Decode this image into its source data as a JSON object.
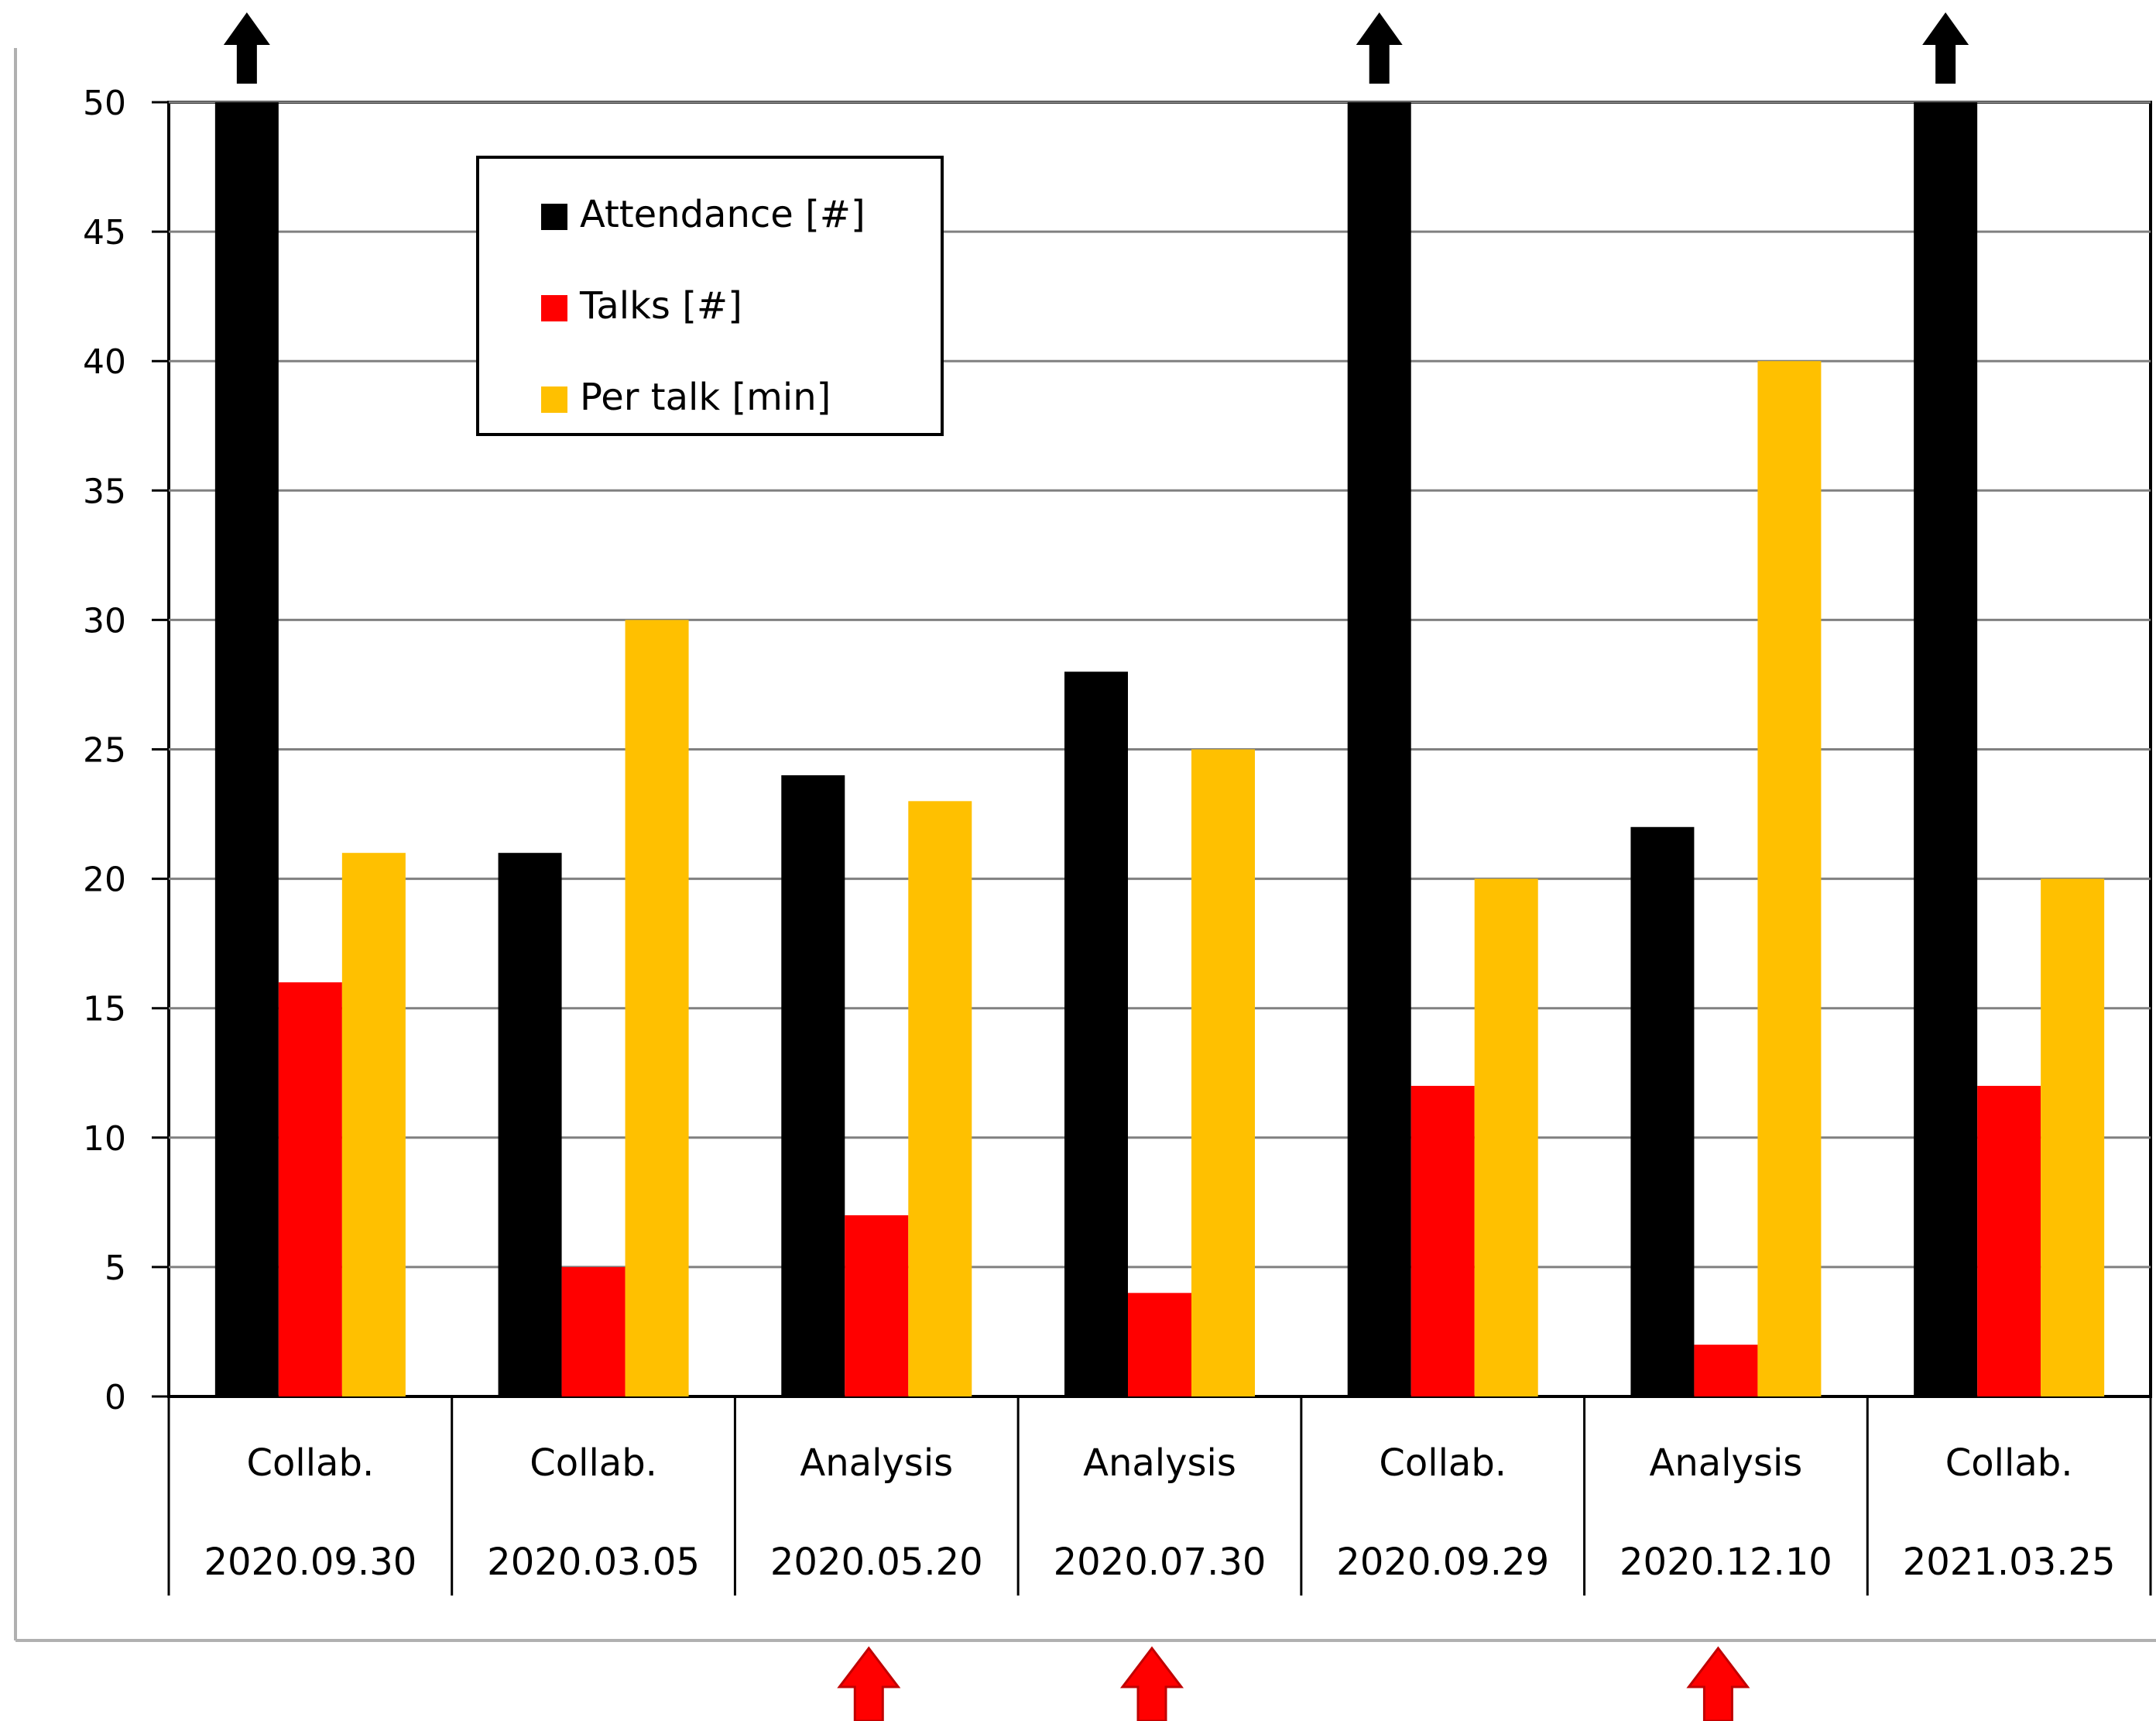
{
  "chart_data": {
    "type": "bar",
    "title": "",
    "xlabel": "",
    "ylabel": "",
    "ylim": [
      0,
      50
    ],
    "yticks": [
      0,
      5,
      10,
      15,
      20,
      25,
      30,
      35,
      40,
      45,
      50
    ],
    "grid": true,
    "legend_position": "top-left",
    "categories": [
      {
        "type": "Collab.",
        "date": "2020.09.30"
      },
      {
        "type": "Collab.",
        "date": "2020.03.05"
      },
      {
        "type": "Analysis",
        "date": "2020.05.20"
      },
      {
        "type": "Analysis",
        "date": "2020.07.30"
      },
      {
        "type": "Collab.",
        "date": "2020.09.29"
      },
      {
        "type": "Analysis",
        "date": "2020.12.10"
      },
      {
        "type": "Collab.",
        "date": "2021.03.25"
      }
    ],
    "series": [
      {
        "name": "Attendance [#]",
        "color": "#000000",
        "values": [
          50,
          21,
          24,
          28,
          50,
          22,
          50
        ],
        "exceeds_axis": [
          true,
          false,
          false,
          false,
          true,
          false,
          true
        ]
      },
      {
        "name": "Talks [#]",
        "color": "#ff0000",
        "values": [
          16,
          5,
          7,
          4,
          12,
          2,
          12
        ]
      },
      {
        "name": "Per talk [min]",
        "color": "#ffc000",
        "values": [
          21,
          30,
          23,
          25,
          20,
          40,
          20
        ]
      }
    ],
    "highlighted_categories": [
      2,
      3,
      5
    ],
    "highlight_color": "#ff0000"
  }
}
